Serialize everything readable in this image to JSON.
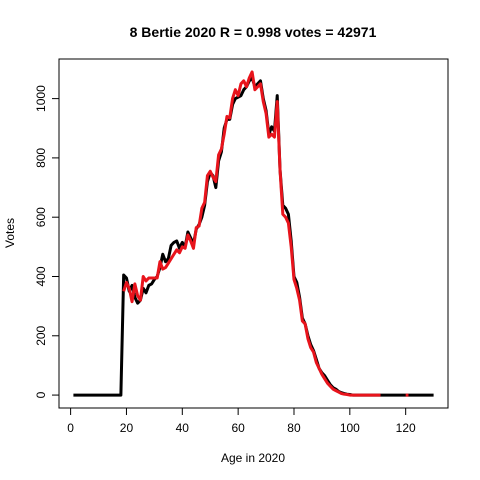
{
  "chart_data": {
    "type": "line",
    "title": "8 Bertie 2020 R = 0.998 votes = 42971",
    "xlabel": "Age in 2020",
    "ylabel": "Votes",
    "x": [
      1,
      2,
      3,
      4,
      5,
      6,
      7,
      8,
      9,
      10,
      11,
      12,
      13,
      14,
      15,
      16,
      17,
      18,
      19,
      20,
      21,
      22,
      23,
      24,
      25,
      26,
      27,
      28,
      29,
      30,
      31,
      32,
      33,
      34,
      35,
      36,
      37,
      38,
      39,
      40,
      41,
      42,
      43,
      44,
      45,
      46,
      47,
      48,
      49,
      50,
      51,
      52,
      53,
      54,
      55,
      56,
      57,
      58,
      59,
      60,
      61,
      62,
      63,
      64,
      65,
      66,
      67,
      68,
      69,
      70,
      71,
      72,
      73,
      74,
      75,
      76,
      77,
      78,
      79,
      80,
      81,
      82,
      83,
      84,
      85,
      86,
      87,
      88,
      89,
      90,
      91,
      92,
      93,
      94,
      95,
      96,
      97,
      98,
      99,
      100,
      101,
      102,
      103,
      104,
      105,
      106,
      107,
      108,
      109,
      110,
      111,
      112,
      113,
      114,
      115,
      116,
      117,
      118,
      119,
      120,
      121,
      122,
      123,
      124,
      125,
      126,
      127,
      128,
      129,
      130
    ],
    "series": [
      {
        "color": "#000000",
        "values": [
          0,
          0,
          0,
          0,
          0,
          0,
          0,
          0,
          0,
          0,
          0,
          0,
          0,
          0,
          0,
          0,
          0,
          0,
          405,
          395,
          350,
          370,
          330,
          310,
          320,
          360,
          345,
          370,
          375,
          390,
          400,
          430,
          475,
          450,
          460,
          505,
          515,
          520,
          495,
          515,
          500,
          550,
          530,
          510,
          560,
          575,
          600,
          640,
          720,
          750,
          740,
          700,
          790,
          820,
          900,
          930,
          930,
          980,
          1000,
          1005,
          1010,
          1030,
          1040,
          1060,
          1070,
          1040,
          1050,
          1060,
          1000,
          960,
          880,
          905,
          890,
          1010,
          760,
          640,
          630,
          610,
          520,
          400,
          380,
          330,
          260,
          240,
          200,
          170,
          150,
          120,
          90,
          75,
          65,
          50,
          35,
          25,
          20,
          12,
          8,
          5,
          3,
          2,
          0,
          0,
          0,
          0,
          0,
          0,
          0,
          0,
          0,
          0,
          0,
          0,
          0,
          0,
          0,
          0,
          0,
          0,
          0,
          0,
          0,
          0,
          0,
          0,
          0,
          0,
          0,
          0,
          0,
          0
        ]
      },
      {
        "color": "#e8141c",
        "values": [
          null,
          null,
          null,
          null,
          null,
          null,
          null,
          null,
          null,
          null,
          null,
          null,
          null,
          null,
          null,
          null,
          null,
          null,
          350,
          380,
          360,
          315,
          375,
          335,
          320,
          400,
          385,
          395,
          395,
          395,
          395,
          450,
          425,
          430,
          445,
          460,
          475,
          490,
          480,
          500,
          495,
          540,
          520,
          495,
          565,
          570,
          630,
          650,
          740,
          755,
          735,
          720,
          810,
          830,
          880,
          940,
          935,
          1000,
          1030,
          1010,
          1050,
          1060,
          1040,
          1070,
          1090,
          1030,
          1040,
          1050,
          990,
          950,
          870,
          880,
          870,
          990,
          760,
          610,
          600,
          580,
          500,
          390,
          360,
          320,
          250,
          240,
          190,
          160,
          145,
          110,
          90,
          70,
          55,
          40,
          30,
          20,
          15,
          10,
          5,
          3,
          2,
          0,
          0,
          0,
          0,
          0,
          0,
          0,
          0,
          0,
          0,
          0,
          0,
          null,
          null,
          null,
          null,
          null,
          null,
          null,
          null,
          0,
          0,
          null,
          null,
          null,
          null,
          null,
          null,
          null,
          null,
          null
        ]
      }
    ],
    "xlim": [
      -4.16,
      135.16
    ],
    "ylim": [
      -43.6,
      1133.6
    ],
    "xticks": [
      0,
      20,
      40,
      60,
      80,
      100,
      120
    ],
    "yticks": [
      0,
      200,
      400,
      600,
      800,
      1000
    ]
  }
}
